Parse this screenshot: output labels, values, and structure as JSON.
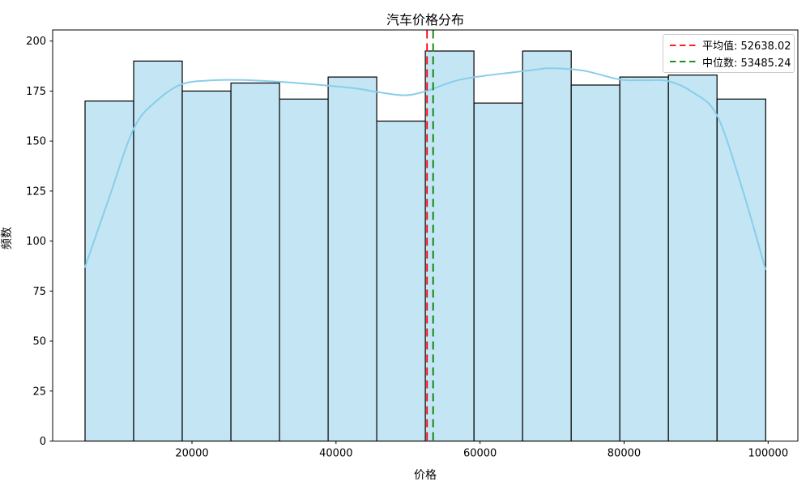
{
  "chart_data": {
    "type": "histogram",
    "title": "汽车价格分布",
    "xlabel": "价格",
    "ylabel": "频数",
    "x_ticks": [
      20000,
      40000,
      60000,
      80000,
      100000
    ],
    "y_ticks": [
      0,
      25,
      50,
      75,
      100,
      125,
      150,
      175,
      200
    ],
    "xlim": [
      430,
      104390
    ],
    "ylim": [
      0,
      205.5
    ],
    "grid": false,
    "legend_position": "upper right",
    "bin_edges": [
      5154,
      11904,
      18655,
      25405,
      32156,
      38906,
      45657,
      52407,
      59157,
      65908,
      72658,
      79409,
      86159,
      92910,
      99660
    ],
    "frequencies": [
      170,
      190,
      175,
      179,
      171,
      182,
      160,
      195,
      169,
      195,
      178,
      182,
      183,
      171
    ],
    "kde_points": [
      [
        5154,
        87.0
      ],
      [
        8528,
        122.0
      ],
      [
        12015,
        157.0
      ],
      [
        15389,
        171.0
      ],
      [
        18651,
        178.5
      ],
      [
        22587,
        180.3
      ],
      [
        27086,
        180.5
      ],
      [
        32710,
        179.5
      ],
      [
        38896,
        177.7
      ],
      [
        43000,
        176.2
      ],
      [
        45657,
        174.6
      ],
      [
        49580,
        172.9
      ],
      [
        52500,
        175.0
      ],
      [
        56666,
        180.2
      ],
      [
        60490,
        182.6
      ],
      [
        64201,
        184.2
      ],
      [
        67912,
        185.8
      ],
      [
        69800,
        186.4
      ],
      [
        74322,
        185.2
      ],
      [
        79383,
        180.8
      ],
      [
        82757,
        180.4
      ],
      [
        86131,
        180.0
      ],
      [
        89505,
        174.5
      ],
      [
        92879,
        163.0
      ],
      [
        96253,
        128.0
      ],
      [
        99627,
        86.0
      ]
    ],
    "mean_line": {
      "value": 52638.02,
      "color": "#ff0000"
    },
    "median_line": {
      "value": 53485.24,
      "color": "#008000"
    },
    "legend_items": [
      {
        "text": "平均值: 52638.02",
        "color": "#ff0000"
      },
      {
        "text": "中位数: 53485.24",
        "color": "#008000"
      }
    ],
    "colors": {
      "bar_fill": "#c4e5f3",
      "bar_edge": "#000000",
      "kde_line": "#87ceeb",
      "axis": "#000000"
    }
  }
}
